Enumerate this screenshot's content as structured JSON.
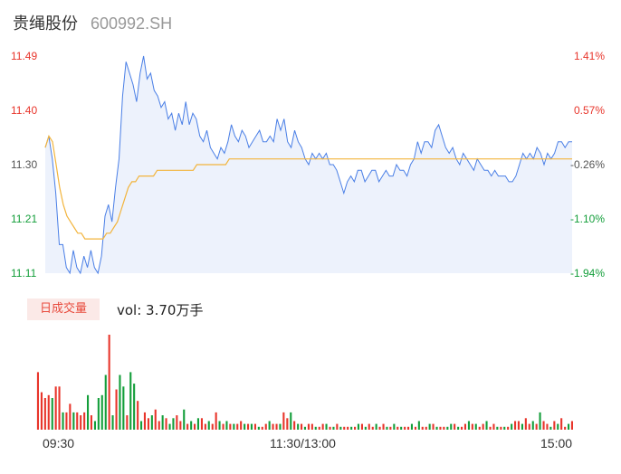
{
  "header": {
    "name": "贵绳股份",
    "code": "600992.SH"
  },
  "colors": {
    "up": "#e8352b",
    "down": "#139e3a",
    "neutral": "#555555",
    "price_line": "#4a7fe6",
    "avg_line": "#f2b43c",
    "area_fill": "#edf2fc"
  },
  "price_axis": {
    "left": [
      {
        "label": "11.49",
        "color": "up"
      },
      {
        "label": "11.40",
        "color": "up"
      },
      {
        "label": "11.30",
        "color": "neutral"
      },
      {
        "label": "11.21",
        "color": "down"
      },
      {
        "label": "11.11",
        "color": "down"
      }
    ],
    "right": [
      {
        "label": "1.41%",
        "color": "up"
      },
      {
        "label": "0.57%",
        "color": "up"
      },
      {
        "label": "-0.26%",
        "color": "neutral"
      },
      {
        "label": "-1.10%",
        "color": "down"
      },
      {
        "label": "-1.94%",
        "color": "down"
      }
    ]
  },
  "volume": {
    "tag": "日成交量",
    "value_text": "vol: 3.70万手"
  },
  "time_axis": [
    "09:30",
    "11:30/13:00",
    "15:00"
  ],
  "chart_data": [
    {
      "type": "line",
      "title": "",
      "ylim": [
        11.11,
        11.49
      ],
      "reference_price": 11.33,
      "x_ticks": [
        "09:30",
        "11:30/13:00",
        "15:00"
      ],
      "series": [
        {
          "values": [
            11.33,
            11.35,
            11.31,
            11.25,
            11.16,
            11.16,
            11.12,
            11.11,
            11.15,
            11.12,
            11.11,
            11.14,
            11.12,
            11.15,
            11.12,
            11.11,
            11.14,
            11.21,
            11.23,
            11.2,
            11.26,
            11.31,
            11.42,
            11.48,
            11.46,
            11.44,
            11.41,
            11.46,
            11.49,
            11.45,
            11.46,
            11.43,
            11.42,
            11.4,
            11.41,
            11.38,
            11.39,
            11.36,
            11.39,
            11.37,
            11.41,
            11.37,
            11.39,
            11.38,
            11.35,
            11.34,
            11.36,
            11.33,
            11.32,
            11.31,
            11.33,
            11.32,
            11.34,
            11.37,
            11.35,
            11.34,
            11.36,
            11.35,
            11.33,
            11.34,
            11.35,
            11.36,
            11.34,
            11.34,
            11.35,
            11.34,
            11.38,
            11.36,
            11.38,
            11.34,
            11.33,
            11.36,
            11.34,
            11.33,
            11.31,
            11.3,
            11.32,
            11.31,
            11.32,
            11.31,
            11.32,
            11.3,
            11.3,
            11.29,
            11.27,
            11.25,
            11.27,
            11.28,
            11.27,
            11.29,
            11.29,
            11.27,
            11.28,
            11.29,
            11.29,
            11.27,
            11.28,
            11.29,
            11.28,
            11.28,
            11.3,
            11.29,
            11.29,
            11.28,
            11.3,
            11.31,
            11.34,
            11.32,
            11.34,
            11.34,
            11.33,
            11.36,
            11.37,
            11.35,
            11.33,
            11.32,
            11.33,
            11.31,
            11.3,
            11.32,
            11.31,
            11.3,
            11.29,
            11.31,
            11.3,
            11.29,
            11.29,
            11.28,
            11.29,
            11.28,
            11.28,
            11.28,
            11.27,
            11.27,
            11.28,
            11.3,
            11.32,
            11.31,
            11.32,
            11.31,
            11.33,
            11.32,
            11.3,
            11.32,
            11.31,
            11.32,
            11.34,
            11.34,
            11.33,
            11.34,
            11.34
          ]
        },
        {
          "values": [
            11.33,
            11.35,
            11.34,
            11.3,
            11.26,
            11.23,
            11.21,
            11.2,
            11.19,
            11.18,
            11.18,
            11.17,
            11.17,
            11.17,
            11.17,
            11.17,
            11.17,
            11.18,
            11.18,
            11.19,
            11.2,
            11.22,
            11.24,
            11.26,
            11.27,
            11.27,
            11.28,
            11.28,
            11.28,
            11.28,
            11.28,
            11.29,
            11.29,
            11.29,
            11.29,
            11.29,
            11.29,
            11.29,
            11.29,
            11.29,
            11.29,
            11.29,
            11.3,
            11.3,
            11.3,
            11.3,
            11.3,
            11.3,
            11.3,
            11.3,
            11.3,
            11.31,
            11.31,
            11.31,
            11.31,
            11.31,
            11.31,
            11.31,
            11.31,
            11.31,
            11.31,
            11.31,
            11.31,
            11.31,
            11.31,
            11.31,
            11.31,
            11.31,
            11.31,
            11.31,
            11.31,
            11.31,
            11.31,
            11.31,
            11.31,
            11.31,
            11.31,
            11.31,
            11.31,
            11.31,
            11.31,
            11.31,
            11.31,
            11.31,
            11.31,
            11.31,
            11.31,
            11.31,
            11.31,
            11.31,
            11.31,
            11.31,
            11.31,
            11.31,
            11.31,
            11.31,
            11.31,
            11.31,
            11.31,
            11.31,
            11.31,
            11.31,
            11.31,
            11.31,
            11.31,
            11.31,
            11.31,
            11.31,
            11.31,
            11.31,
            11.31,
            11.31,
            11.31,
            11.31,
            11.31,
            11.31,
            11.31,
            11.31,
            11.31,
            11.31,
            11.31,
            11.31,
            11.31,
            11.31,
            11.31,
            11.31,
            11.31,
            11.31,
            11.31,
            11.31,
            11.31,
            11.31,
            11.31,
            11.31,
            11.31,
            11.31,
            11.31,
            11.31,
            11.31,
            11.31,
            11.31,
            11.31,
            11.31,
            11.31,
            11.31,
            11.31,
            11.31
          ]
        }
      ]
    },
    {
      "type": "bar",
      "title": "",
      "series": [
        {
          "values": [
            20,
            13,
            11,
            12,
            11,
            15,
            15,
            6,
            6,
            9,
            6,
            6,
            5,
            6,
            12,
            5,
            3,
            11,
            12,
            19,
            33,
            5,
            14,
            19,
            15,
            5,
            20,
            16,
            10,
            3,
            6,
            4,
            5,
            7,
            3,
            5,
            4,
            2,
            4,
            5,
            3,
            7,
            2,
            3,
            2,
            4,
            4,
            2,
            3,
            2,
            6,
            3,
            2,
            3,
            2,
            2,
            2,
            3,
            2,
            2,
            2,
            2,
            1,
            1,
            2,
            3,
            2,
            2,
            2,
            6,
            4,
            6,
            3,
            2,
            2,
            1,
            2,
            2,
            1,
            1,
            2,
            2,
            1,
            1,
            2,
            1,
            1,
            1,
            1,
            1,
            2,
            2,
            1,
            2,
            1,
            2,
            1,
            2,
            1,
            1,
            2,
            1,
            1,
            1,
            1,
            2,
            1,
            3,
            1,
            1,
            2,
            2,
            1,
            1,
            1,
            1,
            2,
            2,
            1,
            1,
            2,
            3,
            2,
            2,
            1,
            2,
            3,
            1,
            2,
            1,
            1,
            1,
            1,
            2,
            3,
            3,
            2,
            4,
            2,
            3,
            2,
            6,
            3,
            2,
            1,
            3,
            2,
            4,
            1,
            2,
            3
          ],
          "up": [
            1,
            1,
            1,
            1,
            0,
            1,
            1,
            0,
            1,
            1,
            0,
            1,
            1,
            1,
            0,
            1,
            0,
            0,
            0,
            0,
            1,
            0,
            1,
            0,
            0,
            1,
            0,
            0,
            1,
            0,
            1,
            1,
            0,
            1,
            1,
            0,
            1,
            0,
            0,
            1,
            1,
            0,
            1,
            0,
            1,
            0,
            1,
            1,
            0,
            1,
            1,
            0,
            1,
            0,
            1,
            0,
            1,
            1,
            0,
            1,
            0,
            1,
            0,
            1,
            1,
            0,
            1,
            1,
            0,
            1,
            1,
            0,
            1,
            0,
            1,
            0,
            1,
            1,
            0,
            1,
            1,
            0,
            1,
            0,
            1,
            0,
            1,
            1,
            0,
            1,
            0,
            1,
            0,
            1,
            1,
            0,
            1,
            1,
            0,
            1,
            0,
            1,
            0,
            1,
            1,
            0,
            1,
            0,
            1,
            1,
            0,
            1,
            0,
            1,
            1,
            0,
            0,
            1,
            0,
            1,
            1,
            0,
            1,
            0,
            1,
            1,
            0,
            1,
            1,
            0,
            1,
            0,
            1,
            0,
            1,
            1,
            0,
            1,
            1,
            0,
            1,
            0,
            1,
            1,
            0,
            1,
            0,
            1,
            1,
            0,
            1
          ]
        }
      ]
    }
  ]
}
